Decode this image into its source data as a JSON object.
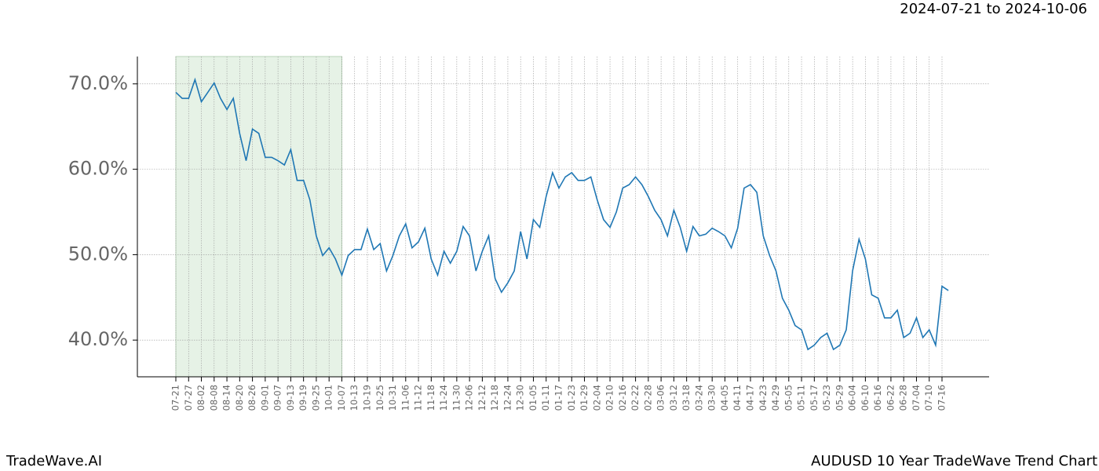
{
  "chart_data": {
    "type": "line",
    "subtitle": "2024-07-21 to 2024-10-06",
    "watermark": "TradeWave.AI",
    "title": "AUDUSD 10 Year TradeWave Trend Chart",
    "categories": [
      "07-21",
      null,
      "07-27",
      null,
      "08-02",
      null,
      "08-08",
      null,
      "08-14",
      null,
      "08-20",
      null,
      "08-26",
      null,
      "09-01",
      null,
      "09-07",
      null,
      "09-13",
      null,
      "09-19",
      null,
      "09-25",
      null,
      "10-01",
      null,
      "10-07",
      null,
      "10-13",
      null,
      "10-19",
      null,
      "10-25",
      null,
      "10-31",
      null,
      "11-06",
      null,
      "11-12",
      null,
      "11-18",
      null,
      "11-24",
      null,
      "11-30",
      null,
      "12-06",
      null,
      "12-12",
      null,
      "12-18",
      null,
      "12-24",
      null,
      "12-30",
      null,
      "01-05",
      null,
      "01-11",
      null,
      "01-17",
      null,
      "01-23",
      null,
      "01-29",
      null,
      "02-04",
      null,
      "02-10",
      null,
      "02-16",
      null,
      "02-22",
      null,
      "02-28",
      null,
      "03-06",
      null,
      "03-12",
      null,
      "03-18",
      null,
      "03-24",
      null,
      "03-30",
      null,
      "04-05",
      null,
      "04-11",
      null,
      "04-17",
      null,
      "04-23",
      null,
      "04-29",
      null,
      "05-05",
      null,
      "05-11",
      null,
      "05-17",
      null,
      "05-23",
      null,
      "05-29",
      null,
      "06-04",
      null,
      "06-10",
      null,
      "06-16",
      null,
      "06-22",
      null,
      "06-28",
      null,
      "07-04",
      null,
      "07-10",
      null,
      "07-16",
      null
    ],
    "series": [
      {
        "color": "#1f77b4",
        "values": [
          69.0,
          68.3,
          68.3,
          70.5,
          67.9,
          69.0,
          70.1,
          68.3,
          67.0,
          68.3,
          64.2,
          61.0,
          64.7,
          64.2,
          61.4,
          61.4,
          61.0,
          60.5,
          62.3,
          58.7,
          58.7,
          56.4,
          52.2,
          49.9,
          50.8,
          49.5,
          47.6,
          49.9,
          50.6,
          50.6,
          53.0,
          50.6,
          51.3,
          48.1,
          49.9,
          52.2,
          53.6,
          50.8,
          51.5,
          53.1,
          49.5,
          47.6,
          50.4,
          49.0,
          50.4,
          53.3,
          52.2,
          48.1,
          50.4,
          52.2,
          47.2,
          45.6,
          46.7,
          48.1,
          52.7,
          49.5,
          54.1,
          53.2,
          56.8,
          59.6,
          57.8,
          59.1,
          59.6,
          58.7,
          58.7,
          59.1,
          56.4,
          54.1,
          53.2,
          55.0,
          57.8,
          58.2,
          59.1,
          58.2,
          56.8,
          55.2,
          54.1,
          52.2,
          55.2,
          53.2,
          50.4,
          53.3,
          52.2,
          52.4,
          53.1,
          52.7,
          52.2,
          50.8,
          53.1,
          57.8,
          58.2,
          57.3,
          52.2,
          49.9,
          48.1,
          44.9,
          43.5,
          41.7,
          41.2,
          38.9,
          39.4,
          40.3,
          40.8,
          38.9,
          39.4,
          41.2,
          48.1,
          51.8,
          49.5,
          45.3,
          44.9,
          42.6,
          42.6,
          43.5,
          40.3,
          40.8,
          42.6,
          40.3,
          41.2,
          39.4,
          46.3,
          45.8
        ]
      }
    ],
    "ylim": [
      35.7,
      73.2
    ],
    "yticks": [
      {
        "value": 40,
        "label": "40.0%"
      },
      {
        "value": 50,
        "label": "50.0%"
      },
      {
        "value": 60,
        "label": "60.0%"
      },
      {
        "value": 70,
        "label": "70.0%"
      }
    ],
    "grid": true,
    "highlight": {
      "start": "07-21",
      "end": "10-07",
      "color": "#e6f2e6"
    }
  }
}
